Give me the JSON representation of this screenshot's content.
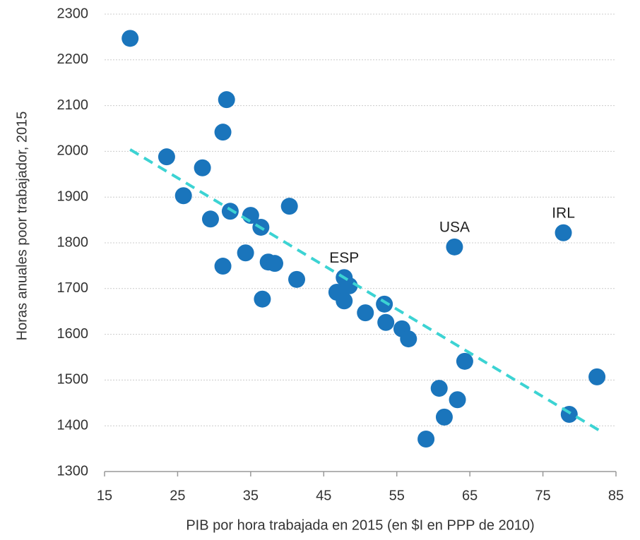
{
  "chart_data": {
    "type": "scatter",
    "x_label": "PIB por hora trabajada en 2015 (en $I en PPP de 2010)",
    "y_label": "Horas anuales poor trabajador, 2015",
    "x": [
      18.5,
      23.5,
      25.8,
      28.4,
      29.5,
      31.2,
      31.7,
      31.2,
      32.2,
      34.3,
      35.0,
      36.4,
      36.6,
      37.4,
      38.3,
      40.3,
      41.3,
      46.8,
      47.8,
      47.8,
      48.5,
      50.7,
      53.3,
      53.5,
      55.7,
      56.6,
      59.0,
      60.8,
      61.5,
      62.9,
      63.3,
      64.3,
      77.8,
      78.6,
      82.4
    ],
    "y": [
      2247,
      1988,
      1903,
      1964,
      1852,
      2042,
      2113,
      1749,
      1869,
      1778,
      1860,
      1834,
      1677,
      1758,
      1755,
      1880,
      1720,
      1692,
      1724,
      1673,
      1706,
      1647,
      1666,
      1626,
      1612,
      1590,
      1371,
      1482,
      1419,
      1791,
      1457,
      1541,
      1822,
      1425,
      1507
    ],
    "point_labels": [
      null,
      null,
      null,
      null,
      null,
      null,
      null,
      null,
      null,
      null,
      null,
      null,
      null,
      null,
      null,
      null,
      null,
      null,
      "ESP",
      null,
      null,
      null,
      null,
      null,
      null,
      null,
      null,
      null,
      null,
      "USA",
      null,
      null,
      "IRL",
      null,
      null
    ],
    "color": "#1a75bc",
    "trendline": {
      "x": [
        18.5,
        82.7
      ],
      "y": [
        2004,
        1390
      ],
      "color": "#3cd3d3"
    },
    "xlim": [
      15,
      85
    ],
    "xticks": [
      15,
      25,
      35,
      45,
      55,
      65,
      75,
      85
    ],
    "ylim": [
      1300,
      2300
    ],
    "yticks": [
      1300,
      1400,
      1500,
      1600,
      1700,
      1800,
      1900,
      2000,
      2100,
      2200,
      2300
    ],
    "grid": true
  }
}
